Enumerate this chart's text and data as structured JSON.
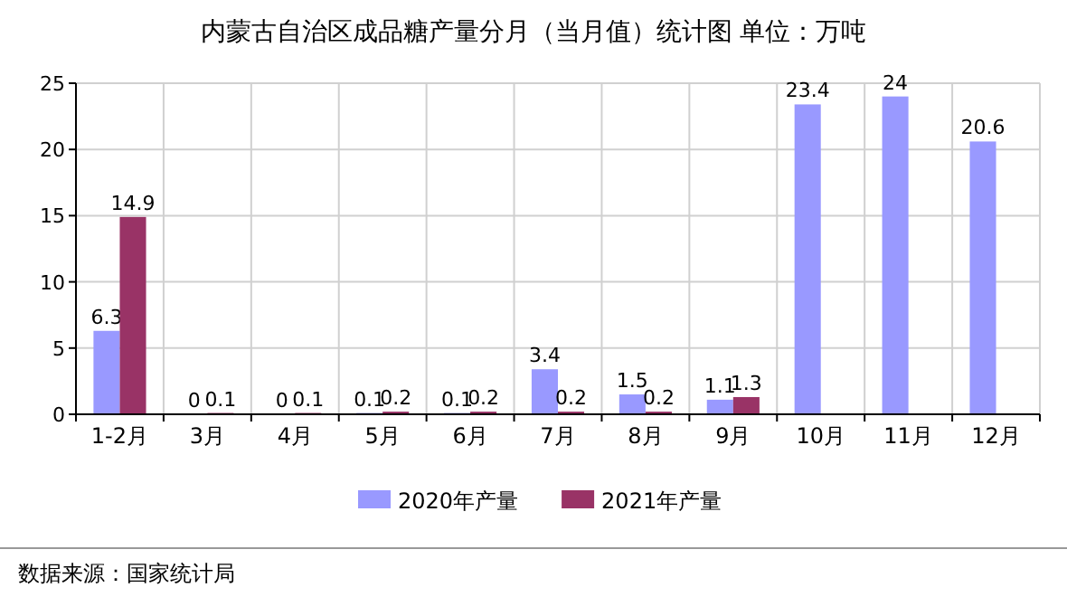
{
  "chart_data": {
    "type": "bar",
    "title": "内蒙古自治区成品糖产量分月（当月值）统计图 单位：万吨",
    "categories": [
      "1-2月",
      "3月",
      "4月",
      "5月",
      "6月",
      "7月",
      "8月",
      "9月",
      "10月",
      "11月",
      "12月"
    ],
    "series": [
      {
        "name": "2020年产量",
        "color": "#9999ff",
        "values": [
          6.3,
          0,
          0,
          0.1,
          0.1,
          3.4,
          1.5,
          1.1,
          23.4,
          24,
          20.6
        ]
      },
      {
        "name": "2021年产量",
        "color": "#993366",
        "values": [
          14.9,
          0.1,
          0.1,
          0.2,
          0.2,
          0.2,
          0.2,
          1.3,
          null,
          null,
          null
        ]
      }
    ],
    "ylim": [
      0,
      25
    ],
    "yticks": [
      0,
      5,
      10,
      15,
      20,
      25
    ],
    "grid": true,
    "legend": "bottom",
    "data_labels": true,
    "annotations": [
      "数据来源：国家统计局"
    ]
  }
}
